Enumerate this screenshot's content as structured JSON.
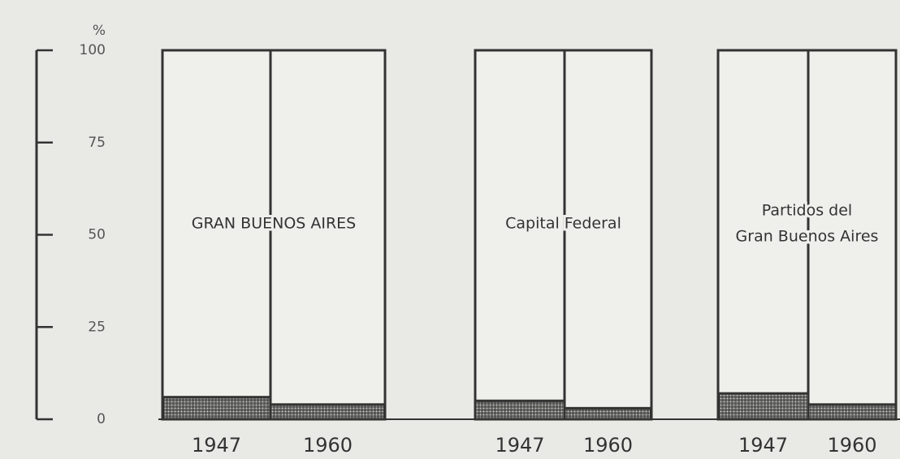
{
  "chart_data": {
    "type": "stacked_bar",
    "y_label": "%",
    "categories": [
      "1947",
      "1960",
      "1947",
      "1960",
      "1947",
      "1960"
    ],
    "group_labels": [
      [
        "GRAN BUENOS AIRES"
      ],
      [
        "Capital Federal"
      ],
      [
        "Partidos del",
        "Gran Buenos Aires"
      ]
    ],
    "groups": [
      [
        0,
        1
      ],
      [
        2,
        3
      ],
      [
        4,
        5
      ]
    ],
    "series": [
      {
        "color": "#2a2a2a",
        "hatched": true,
        "values": [
          6,
          4,
          5,
          3,
          7,
          4
        ]
      },
      {
        "color": "#efefec",
        "hatched": false,
        "values": [
          94,
          96,
          95,
          97,
          93,
          96
        ]
      }
    ],
    "ylim": [
      0,
      100
    ],
    "yticks": [
      0,
      25,
      50,
      75,
      100
    ]
  }
}
